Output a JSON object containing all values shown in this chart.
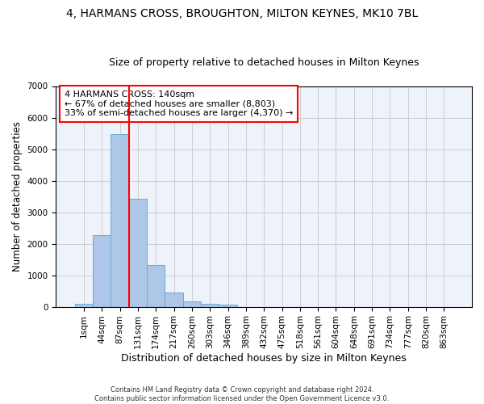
{
  "title_line1": "4, HARMANS CROSS, BROUGHTON, MILTON KEYNES, MK10 7BL",
  "title_line2": "Size of property relative to detached houses in Milton Keynes",
  "xlabel": "Distribution of detached houses by size in Milton Keynes",
  "ylabel": "Number of detached properties",
  "footnote": "Contains HM Land Registry data © Crown copyright and database right 2024.\nContains public sector information licensed under the Open Government Licence v3.0.",
  "bar_labels": [
    "1sqm",
    "44sqm",
    "87sqm",
    "131sqm",
    "174sqm",
    "217sqm",
    "260sqm",
    "303sqm",
    "346sqm",
    "389sqm",
    "432sqm",
    "475sqm",
    "518sqm",
    "561sqm",
    "604sqm",
    "648sqm",
    "691sqm",
    "734sqm",
    "777sqm",
    "820sqm",
    "863sqm"
  ],
  "bar_values": [
    80,
    2280,
    5480,
    3430,
    1310,
    460,
    160,
    90,
    60,
    0,
    0,
    0,
    0,
    0,
    0,
    0,
    0,
    0,
    0,
    0,
    0
  ],
  "bar_color": "#aec6e8",
  "bar_edge_color": "#6aaad4",
  "vline_color": "red",
  "annotation_text": "4 HARMANS CROSS: 140sqm\n← 67% of detached houses are smaller (8,803)\n33% of semi-detached houses are larger (4,370) →",
  "ylim": [
    0,
    7000
  ],
  "yticks": [
    0,
    1000,
    2000,
    3000,
    4000,
    5000,
    6000,
    7000
  ],
  "bg_color": "#eef2fb",
  "grid_color": "#c8c8c8",
  "title_fontsize": 10,
  "subtitle_fontsize": 9,
  "axis_label_fontsize": 9,
  "ylabel_fontsize": 8.5,
  "tick_fontsize": 7.5,
  "annotation_fontsize": 8,
  "footnote_fontsize": 6
}
